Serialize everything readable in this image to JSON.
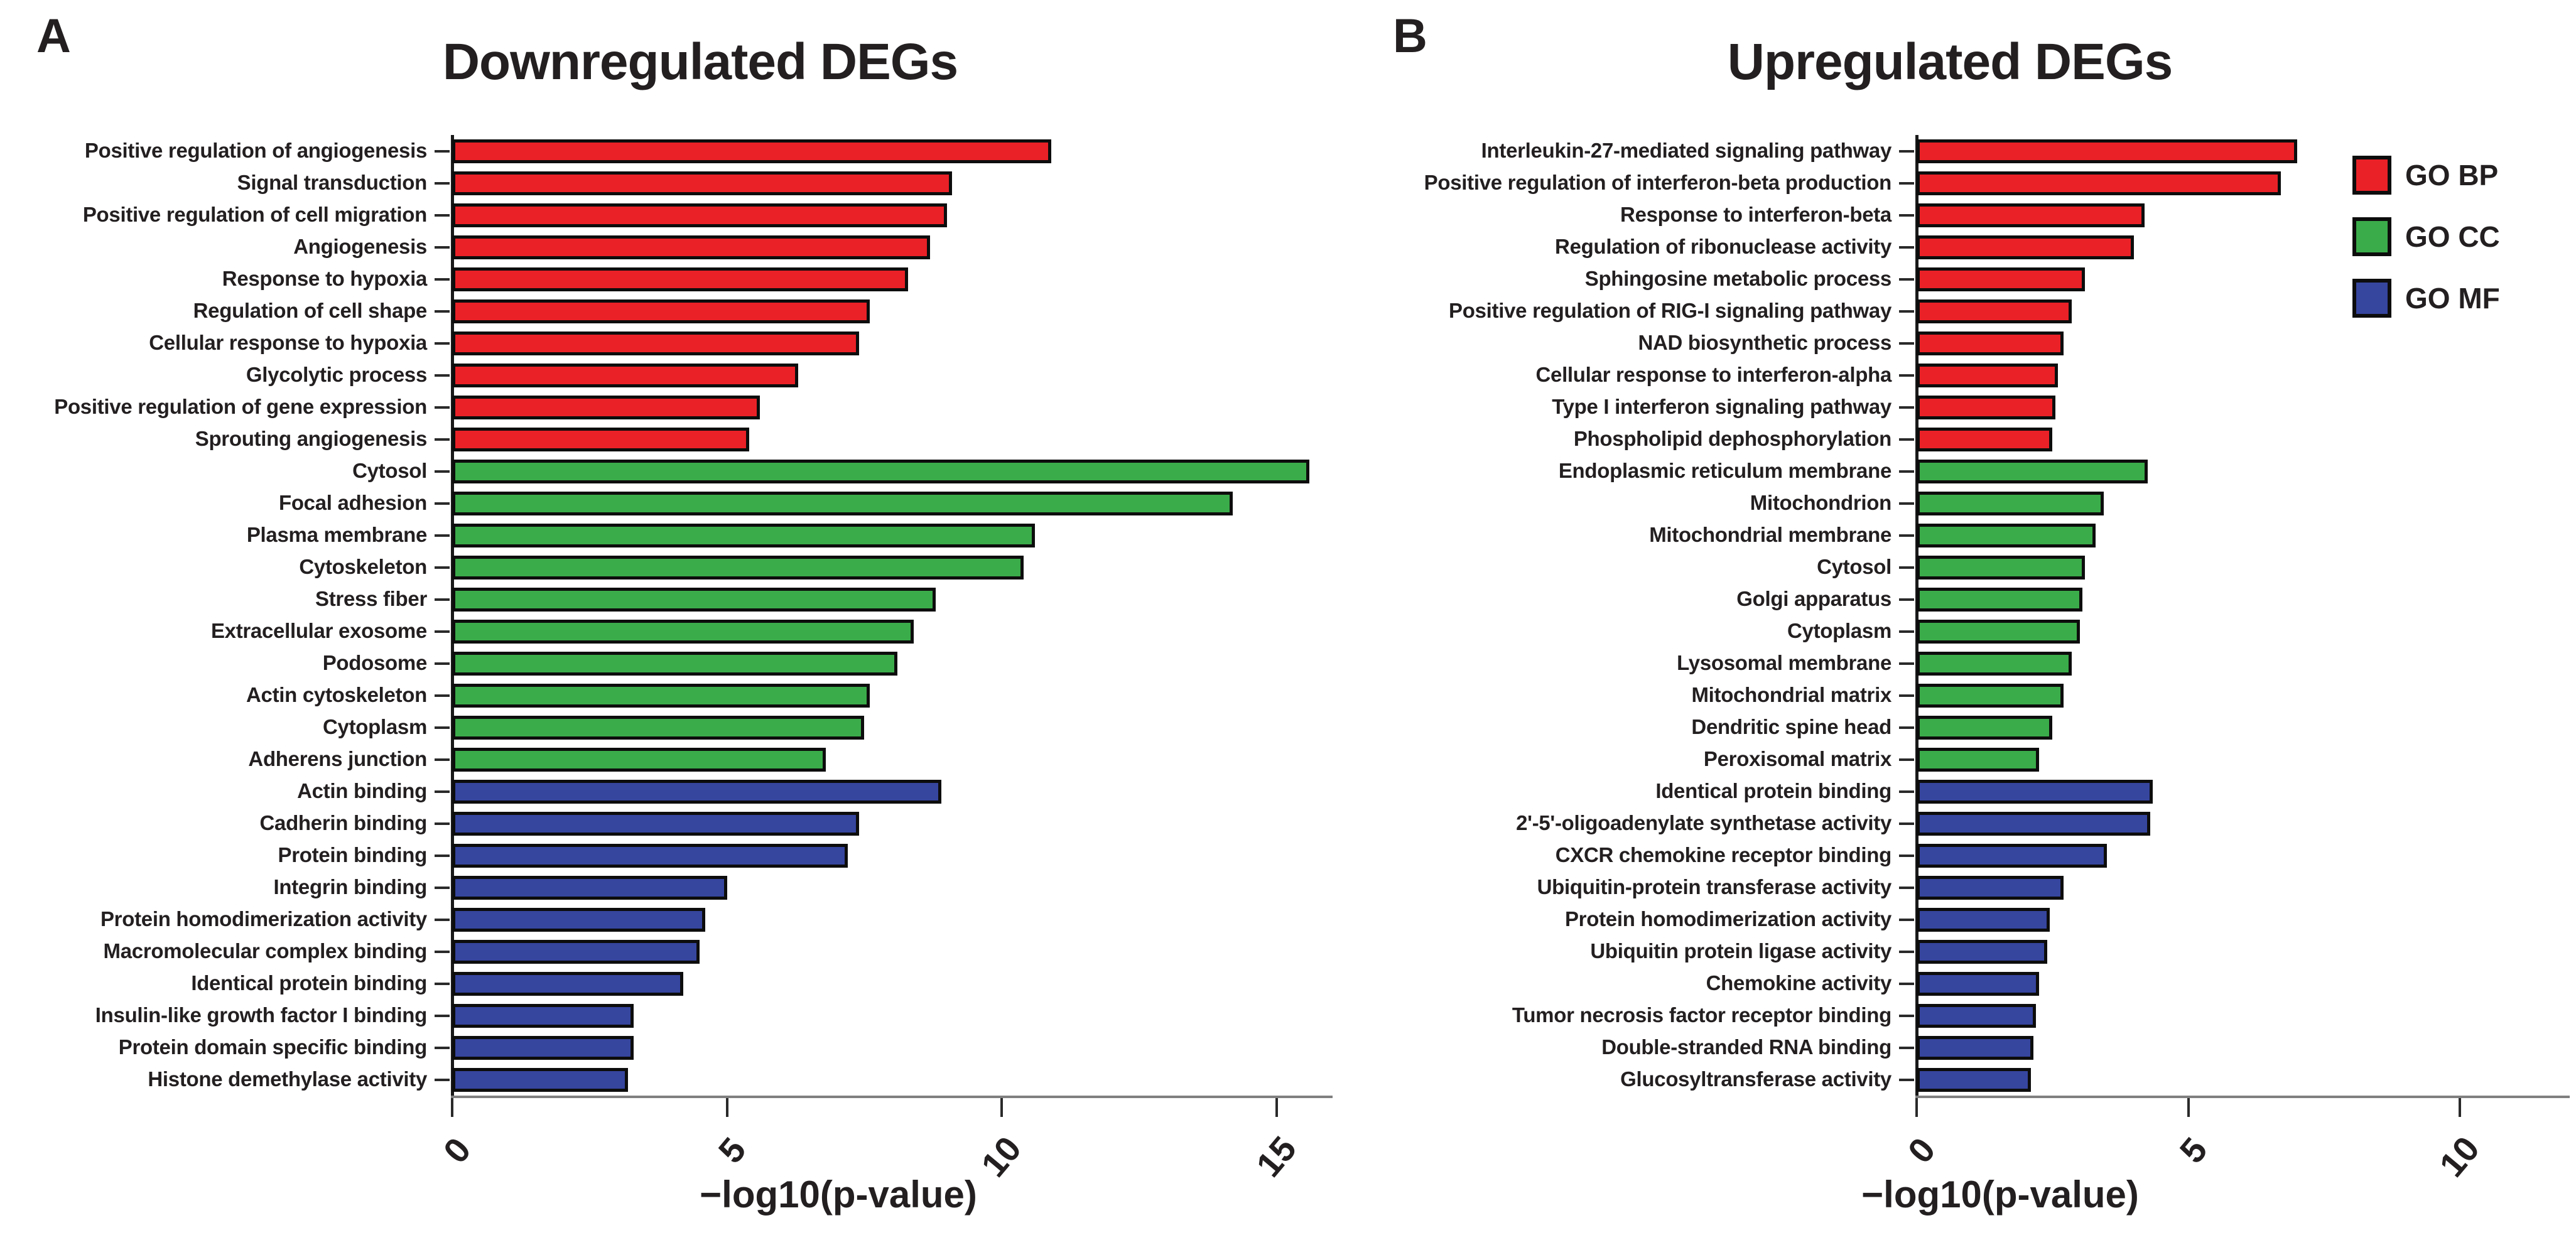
{
  "chart_data": [
    {
      "type": "bar",
      "orientation": "horizontal",
      "panel_letter": "A",
      "title": "Downregulated DEGs",
      "xlabel": "−log10(p-value)",
      "xlim": [
        0,
        16
      ],
      "xticks": [
        0,
        5,
        10,
        15
      ],
      "grid": false,
      "group_colors": {
        "GO BP": "#ea2127",
        "GO CC": "#3bac4a",
        "GO MF": "#36459e"
      },
      "bars": [
        {
          "label": "Positive regulation of angiogenesis",
          "value": 10.9,
          "group": "GO BP"
        },
        {
          "label": "Signal transduction",
          "value": 9.1,
          "group": "GO BP"
        },
        {
          "label": "Positive regulation of cell migration",
          "value": 9.0,
          "group": "GO BP"
        },
        {
          "label": "Angiogenesis",
          "value": 8.7,
          "group": "GO BP"
        },
        {
          "label": "Response to hypoxia",
          "value": 8.3,
          "group": "GO BP"
        },
        {
          "label": "Regulation of cell shape",
          "value": 7.6,
          "group": "GO BP"
        },
        {
          "label": "Cellular response to hypoxia",
          "value": 7.4,
          "group": "GO BP"
        },
        {
          "label": "Glycolytic process",
          "value": 6.3,
          "group": "GO BP"
        },
        {
          "label": "Positive regulation of gene expression",
          "value": 5.6,
          "group": "GO BP"
        },
        {
          "label": "Sprouting angiogenesis",
          "value": 5.4,
          "group": "GO BP"
        },
        {
          "label": "Cytosol",
          "value": 15.6,
          "group": "GO CC"
        },
        {
          "label": "Focal adhesion",
          "value": 14.2,
          "group": "GO CC"
        },
        {
          "label": "Plasma membrane",
          "value": 10.6,
          "group": "GO CC"
        },
        {
          "label": "Cytoskeleton",
          "value": 10.4,
          "group": "GO CC"
        },
        {
          "label": "Stress fiber",
          "value": 8.8,
          "group": "GO CC"
        },
        {
          "label": "Extracellular exosome",
          "value": 8.4,
          "group": "GO CC"
        },
        {
          "label": "Podosome",
          "value": 8.1,
          "group": "GO CC"
        },
        {
          "label": "Actin cytoskeleton",
          "value": 7.6,
          "group": "GO CC"
        },
        {
          "label": "Cytoplasm",
          "value": 7.5,
          "group": "GO CC"
        },
        {
          "label": "Adherens junction",
          "value": 6.8,
          "group": "GO CC"
        },
        {
          "label": "Actin binding",
          "value": 8.9,
          "group": "GO MF"
        },
        {
          "label": "Cadherin binding",
          "value": 7.4,
          "group": "GO MF"
        },
        {
          "label": "Protein binding",
          "value": 7.2,
          "group": "GO MF"
        },
        {
          "label": "Integrin binding",
          "value": 5.0,
          "group": "GO MF"
        },
        {
          "label": "Protein homodimerization activity",
          "value": 4.6,
          "group": "GO MF"
        },
        {
          "label": "Macromolecular complex binding",
          "value": 4.5,
          "group": "GO MF"
        },
        {
          "label": "Identical protein binding",
          "value": 4.2,
          "group": "GO MF"
        },
        {
          "label": "Insulin-like growth factor I binding",
          "value": 3.3,
          "group": "GO MF"
        },
        {
          "label": "Protein domain specific binding",
          "value": 3.3,
          "group": "GO MF"
        },
        {
          "label": "Histone demethylase activity",
          "value": 3.2,
          "group": "GO MF"
        }
      ]
    },
    {
      "type": "bar",
      "orientation": "horizontal",
      "panel_letter": "B",
      "title": "Upregulated DEGs",
      "xlabel": "−log10(p-value)",
      "xlim": [
        0,
        12
      ],
      "xticks": [
        0,
        5,
        10
      ],
      "grid": false,
      "group_colors": {
        "GO BP": "#ea2127",
        "GO CC": "#3bac4a",
        "GO MF": "#36459e"
      },
      "legend": {
        "position": "top-right",
        "items": [
          {
            "label": "GO BP",
            "color": "#ea2127"
          },
          {
            "label": "GO CC",
            "color": "#3bac4a"
          },
          {
            "label": "GO MF",
            "color": "#36459e"
          }
        ]
      },
      "bars": [
        {
          "label": "Interleukin-27-mediated signaling pathway",
          "value": 7.0,
          "group": "GO BP"
        },
        {
          "label": "Positive regulation of interferon-beta production",
          "value": 6.7,
          "group": "GO BP"
        },
        {
          "label": "Response to interferon-beta",
          "value": 4.2,
          "group": "GO BP"
        },
        {
          "label": "Regulation of ribonuclease activity",
          "value": 4.0,
          "group": "GO BP"
        },
        {
          "label": "Sphingosine metabolic process",
          "value": 3.1,
          "group": "GO BP"
        },
        {
          "label": "Positive regulation of RIG-I signaling pathway",
          "value": 2.85,
          "group": "GO BP"
        },
        {
          "label": "NAD biosynthetic process",
          "value": 2.7,
          "group": "GO BP"
        },
        {
          "label": "Cellular response to interferon-alpha",
          "value": 2.6,
          "group": "GO BP"
        },
        {
          "label": "Type I interferon signaling pathway",
          "value": 2.55,
          "group": "GO BP"
        },
        {
          "label": "Phospholipid dephosphorylation",
          "value": 2.5,
          "group": "GO BP"
        },
        {
          "label": "Endoplasmic reticulum membrane",
          "value": 4.25,
          "group": "GO CC"
        },
        {
          "label": "Mitochondrion",
          "value": 3.45,
          "group": "GO CC"
        },
        {
          "label": "Mitochondrial membrane",
          "value": 3.3,
          "group": "GO CC"
        },
        {
          "label": "Cytosol",
          "value": 3.1,
          "group": "GO CC"
        },
        {
          "label": "Golgi apparatus",
          "value": 3.05,
          "group": "GO CC"
        },
        {
          "label": "Cytoplasm",
          "value": 3.0,
          "group": "GO CC"
        },
        {
          "label": "Lysosomal membrane",
          "value": 2.85,
          "group": "GO CC"
        },
        {
          "label": "Mitochondrial matrix",
          "value": 2.7,
          "group": "GO CC"
        },
        {
          "label": "Dendritic spine head",
          "value": 2.5,
          "group": "GO CC"
        },
        {
          "label": "Peroxisomal matrix",
          "value": 2.25,
          "group": "GO CC"
        },
        {
          "label": "Identical protein binding",
          "value": 4.35,
          "group": "GO MF"
        },
        {
          "label": "2'-5'-oligoadenylate synthetase activity",
          "value": 4.3,
          "group": "GO MF"
        },
        {
          "label": "CXCR chemokine receptor binding",
          "value": 3.5,
          "group": "GO MF"
        },
        {
          "label": "Ubiquitin-protein transferase activity",
          "value": 2.7,
          "group": "GO MF"
        },
        {
          "label": "Protein homodimerization activity",
          "value": 2.45,
          "group": "GO MF"
        },
        {
          "label": "Ubiquitin protein ligase activity",
          "value": 2.4,
          "group": "GO MF"
        },
        {
          "label": "Chemokine activity",
          "value": 2.25,
          "group": "GO MF"
        },
        {
          "label": "Tumor necrosis factor receptor binding",
          "value": 2.2,
          "group": "GO MF"
        },
        {
          "label": "Double-stranded RNA binding",
          "value": 2.15,
          "group": "GO MF"
        },
        {
          "label": "Glucosyltransferase activity",
          "value": 2.1,
          "group": "GO MF"
        }
      ]
    }
  ]
}
